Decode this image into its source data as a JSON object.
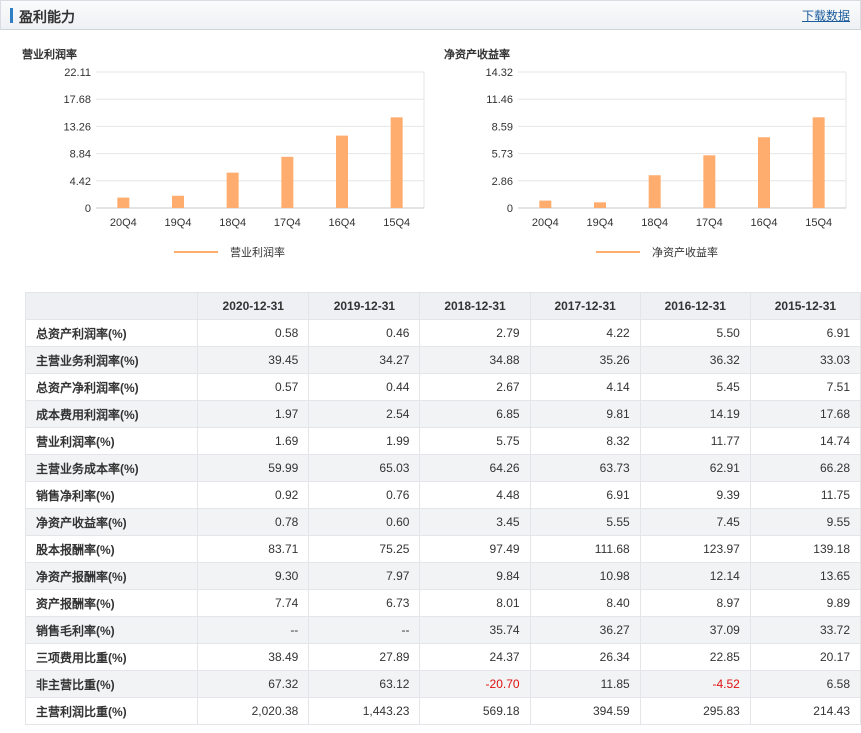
{
  "header": {
    "title": "盈利能力",
    "download_label": "下载数据"
  },
  "chart_data": [
    {
      "type": "bar",
      "title": "营业利润率",
      "categories": [
        "20Q4",
        "19Q4",
        "18Q4",
        "17Q4",
        "16Q4",
        "15Q4"
      ],
      "series": [
        {
          "name": "营业利润率",
          "values": [
            1.69,
            1.99,
            5.75,
            8.32,
            11.77,
            14.74
          ]
        }
      ],
      "yticks": [
        "0",
        "4.42",
        "8.84",
        "13.26",
        "17.68",
        "22.11"
      ],
      "ylim": [
        0,
        22.11
      ],
      "grid": true,
      "legend": "bottom",
      "color": "#ffad6e"
    },
    {
      "type": "bar",
      "title": "净资产收益率",
      "categories": [
        "20Q4",
        "19Q4",
        "18Q4",
        "17Q4",
        "16Q4",
        "15Q4"
      ],
      "series": [
        {
          "name": "净资产收益率",
          "values": [
            0.78,
            0.6,
            3.45,
            5.55,
            7.45,
            9.55
          ]
        }
      ],
      "yticks": [
        "0",
        "2.86",
        "5.73",
        "8.59",
        "11.46",
        "14.32"
      ],
      "ylim": [
        0,
        14.32
      ],
      "grid": true,
      "legend": "bottom",
      "color": "#ffad6e"
    }
  ],
  "table": {
    "columns": [
      "2020-12-31",
      "2019-12-31",
      "2018-12-31",
      "2017-12-31",
      "2016-12-31",
      "2015-12-31"
    ],
    "rows": [
      {
        "label": "总资产利润率(%)",
        "values": [
          "0.58",
          "0.46",
          "2.79",
          "4.22",
          "5.50",
          "6.91"
        ]
      },
      {
        "label": "主营业务利润率(%)",
        "values": [
          "39.45",
          "34.27",
          "34.88",
          "35.26",
          "36.32",
          "33.03"
        ]
      },
      {
        "label": "总资产净利润率(%)",
        "values": [
          "0.57",
          "0.44",
          "2.67",
          "4.14",
          "5.45",
          "7.51"
        ]
      },
      {
        "label": "成本费用利润率(%)",
        "values": [
          "1.97",
          "2.54",
          "6.85",
          "9.81",
          "14.19",
          "17.68"
        ]
      },
      {
        "label": "营业利润率(%)",
        "values": [
          "1.69",
          "1.99",
          "5.75",
          "8.32",
          "11.77",
          "14.74"
        ]
      },
      {
        "label": "主营业务成本率(%)",
        "values": [
          "59.99",
          "65.03",
          "64.26",
          "63.73",
          "62.91",
          "66.28"
        ]
      },
      {
        "label": "销售净利率(%)",
        "values": [
          "0.92",
          "0.76",
          "4.48",
          "6.91",
          "9.39",
          "11.75"
        ]
      },
      {
        "label": "净资产收益率(%)",
        "values": [
          "0.78",
          "0.60",
          "3.45",
          "5.55",
          "7.45",
          "9.55"
        ]
      },
      {
        "label": "股本报酬率(%)",
        "values": [
          "83.71",
          "75.25",
          "97.49",
          "111.68",
          "123.97",
          "139.18"
        ]
      },
      {
        "label": "净资产报酬率(%)",
        "values": [
          "9.30",
          "7.97",
          "9.84",
          "10.98",
          "12.14",
          "13.65"
        ]
      },
      {
        "label": "资产报酬率(%)",
        "values": [
          "7.74",
          "6.73",
          "8.01",
          "8.40",
          "8.97",
          "9.89"
        ]
      },
      {
        "label": "销售毛利率(%)",
        "values": [
          "--",
          "--",
          "35.74",
          "36.27",
          "37.09",
          "33.72"
        ]
      },
      {
        "label": "三项费用比重(%)",
        "values": [
          "38.49",
          "27.89",
          "24.37",
          "26.34",
          "22.85",
          "20.17"
        ]
      },
      {
        "label": "非主营比重(%)",
        "values": [
          "67.32",
          "63.12",
          "-20.70",
          "11.85",
          "-4.52",
          "6.58"
        ]
      },
      {
        "label": "主营利润比重(%)",
        "values": [
          "2,020.38",
          "1,443.23",
          "569.18",
          "394.59",
          "295.83",
          "214.43"
        ]
      }
    ]
  }
}
